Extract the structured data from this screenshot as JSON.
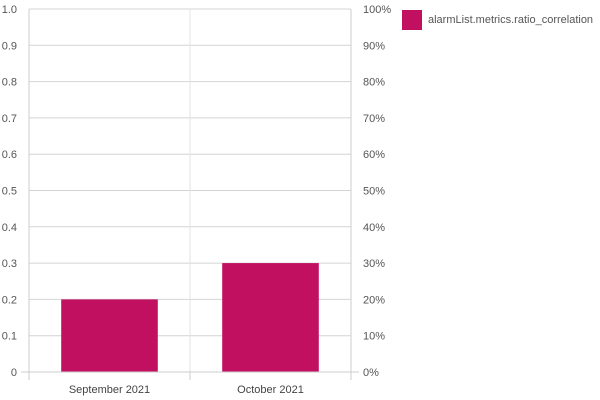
{
  "chart_data": {
    "type": "bar",
    "categories": [
      "September 2021",
      "October 2021"
    ],
    "series": [
      {
        "name": "alarmList.metrics.ratio_correlation",
        "values": [
          0.2,
          0.3
        ],
        "color": "#c21060"
      }
    ],
    "y_left": {
      "lim": [
        0,
        1.0
      ],
      "ticks": [
        "0",
        "0.1",
        "0.2",
        "0.3",
        "0.4",
        "0.5",
        "0.6",
        "0.7",
        "0.8",
        "0.9",
        "1.0"
      ]
    },
    "y_right": {
      "lim": [
        0,
        100
      ],
      "ticks": [
        "0%",
        "10%",
        "20%",
        "30%",
        "40%",
        "50%",
        "60%",
        "70%",
        "80%",
        "90%",
        "100%"
      ]
    },
    "grid": true,
    "legend": "top-right"
  }
}
